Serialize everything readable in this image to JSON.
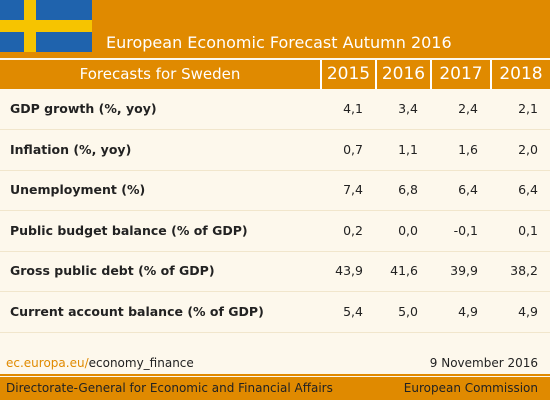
{
  "header": {
    "title": "European Economic Forecast Autumn 2016"
  },
  "table": {
    "columns": [
      "Forecasts for Sweden",
      "2015",
      "2016",
      "2017",
      "2018"
    ],
    "rows": [
      [
        "GDP growth (%, yoy)",
        "4,1",
        "3,4",
        "2,4",
        "2,1"
      ],
      [
        "Inflation (%, yoy)",
        "0,7",
        "1,1",
        "1,6",
        "2,0"
      ],
      [
        "Unemployment (%)",
        "7,4",
        "6,8",
        "6,4",
        "6,4"
      ],
      [
        "Public budget balance (% of GDP)",
        "0,2",
        "0,0",
        "-0,1",
        "0,1"
      ],
      [
        "Gross public debt (% of GDP)",
        "43,9",
        "41,6",
        "39,9",
        "38,2"
      ],
      [
        "Current account balance (% of GDP)",
        "5,4",
        "5,0",
        "4,9",
        "4,9"
      ]
    ]
  },
  "footer": {
    "url_domain": "ec.europa.eu/",
    "url_path": "economy_finance",
    "date": "9 November 2016",
    "left": "Directorate-General for Economic and Financial Affairs",
    "right": "European Commission"
  }
}
